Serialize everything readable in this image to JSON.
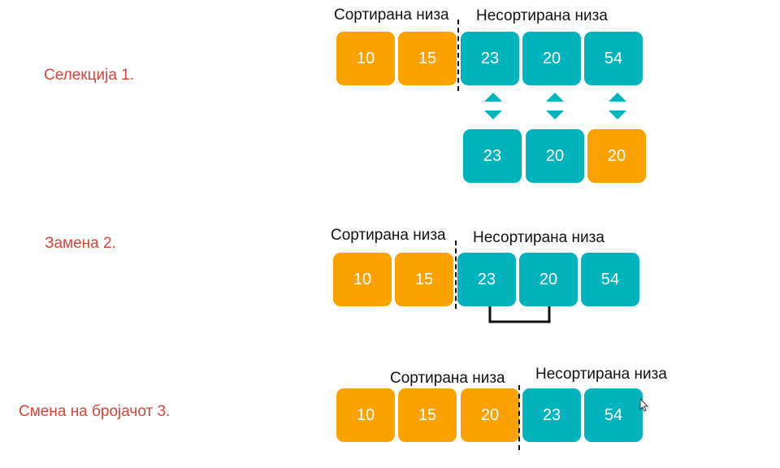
{
  "colors": {
    "sorted": "#fba201",
    "unsorted": "#00b3bd",
    "label": "#d9443a"
  },
  "steps": [
    {
      "label": "Селекција 1.",
      "sorted_header": "Сортирана низа",
      "unsorted_header": "Несортирана низа",
      "row": [
        {
          "value": "10",
          "state": "sorted"
        },
        {
          "value": "15",
          "state": "sorted"
        },
        {
          "value": "23",
          "state": "unsorted"
        },
        {
          "value": "20",
          "state": "unsorted"
        },
        {
          "value": "54",
          "state": "unsorted"
        }
      ],
      "compare_row": [
        {
          "value": "23",
          "state": "unsorted"
        },
        {
          "value": "20",
          "state": "unsorted"
        },
        {
          "value": "20",
          "state": "sorted"
        }
      ]
    },
    {
      "label": "Замена 2.",
      "sorted_header": "Сортирана низа",
      "unsorted_header": "Несортирана низа",
      "row": [
        {
          "value": "10",
          "state": "sorted"
        },
        {
          "value": "15",
          "state": "sorted"
        },
        {
          "value": "23",
          "state": "unsorted"
        },
        {
          "value": "20",
          "state": "unsorted"
        },
        {
          "value": "54",
          "state": "unsorted"
        }
      ]
    },
    {
      "label": "Смена на бројачот 3.",
      "sorted_header": "Сортирана низа",
      "unsorted_header": "Несортирана низа",
      "row": [
        {
          "value": "10",
          "state": "sorted"
        },
        {
          "value": "15",
          "state": "sorted"
        },
        {
          "value": "20",
          "state": "sorted"
        },
        {
          "value": "23",
          "state": "unsorted"
        },
        {
          "value": "54",
          "state": "unsorted"
        }
      ]
    }
  ]
}
